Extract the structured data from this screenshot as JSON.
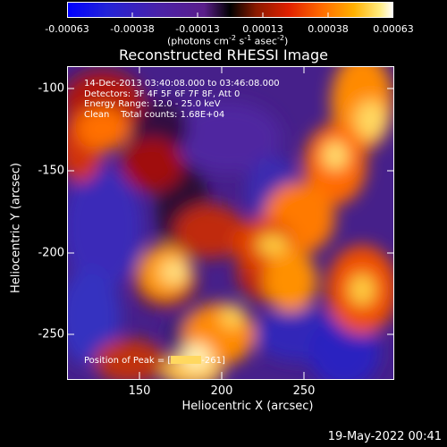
{
  "colorbar": {
    "ticks": [
      "-0.00063",
      "-0.00038",
      "-0.00013",
      "0.00013",
      "0.00038",
      "0.00063"
    ],
    "units_text": "(photons cm",
    "units_exp1": "-2",
    "units_mid": " s",
    "units_exp2": "-1",
    "units_mid2": " asec",
    "units_exp3": "-2",
    "units_end": ")"
  },
  "title": "Reconstructed RHESSI Image",
  "axes": {
    "xlabel": "Heliocentric X (arcsec)",
    "ylabel": "Heliocentric Y (arcsec)",
    "xticks": [
      "150",
      "200",
      "250"
    ],
    "yticks": [
      "-100",
      "-150",
      "-200",
      "-250"
    ]
  },
  "info": {
    "line1": "14-Dec-2013 03:40:08.000 to 03:46:08.000",
    "line2": "Detectors: 3F 4F 5F 6F 7F 8F, Att 0",
    "line3": "Energy Range: 12.0 - 25.0 keV",
    "line4": "Clean    Total counts: 1.68E+04"
  },
  "peak": {
    "prefix": "Position of Peak = [",
    "suffix": "-261]"
  },
  "date": "19-May-2022 00:41"
}
